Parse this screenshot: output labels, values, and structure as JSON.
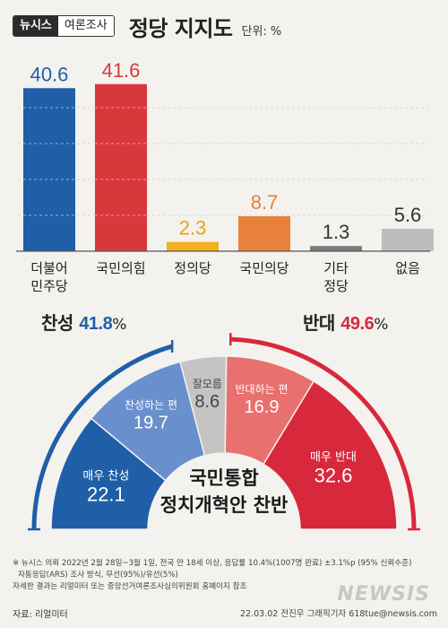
{
  "header": {
    "brand_primary": "뉴시스",
    "brand_secondary": "여론조사",
    "title": "정당 지지도",
    "unit": "단위: %"
  },
  "chart_data": [
    {
      "type": "bar",
      "categories": [
        "더불어\n민주당",
        "국민의힘",
        "정의당",
        "국민의당",
        "기타\n정당",
        "없음"
      ],
      "values": [
        40.6,
        41.6,
        2.3,
        8.7,
        1.3,
        5.6
      ],
      "colors": [
        "#1f5fa8",
        "#d8383c",
        "#f2b01e",
        "#e8813a",
        "#7d7d7d",
        "#bdbdbd"
      ],
      "value_colors": [
        "#1f5fa8",
        "#d8383c",
        "#e7a313",
        "#e8813a",
        "#333333",
        "#333333"
      ],
      "ylim": [
        0,
        42
      ]
    },
    {
      "type": "pie",
      "title": "국민통합\n정치개혁안 찬반",
      "slices": [
        {
          "label": "매우 찬성",
          "value": 22.1,
          "color": "#1f5fa8"
        },
        {
          "label": "찬성하는 편",
          "value": 19.7,
          "color": "#6a8fcd"
        },
        {
          "label": "잘모름",
          "value": 8.6,
          "color": "#c4c4c4"
        },
        {
          "label": "반대하는 편",
          "value": 16.9,
          "color": "#e8706f"
        },
        {
          "label": "매우 반대",
          "value": 32.6,
          "color": "#d8283c"
        }
      ],
      "groups": {
        "agree": {
          "label": "찬성",
          "value": "41.8",
          "unit": "%",
          "color": "#1f5fa8"
        },
        "disagree": {
          "label": "반대",
          "value": "49.6",
          "unit": "%",
          "color": "#d8283c"
        }
      }
    }
  ],
  "notes": [
    "※ 뉴시스 의뢰 2022년 2월 28일~3월 1일, 전국 만 18세 이상, 응답률 10.4%(1007명 완료) ±3.1%p (95% 신뢰수준)",
    "자동응답(ARS) 조사 방식, 무선(95%)/유선(5%)",
    "자세한 결과는 리얼미터 또는 중앙선거여론조사심의위원회 홈페이지 참조"
  ],
  "source": "자료: 리얼미터",
  "credit": "22.03.02 전진우 그래픽기자 618tue@newsis.com",
  "watermark": "NEWSIS"
}
